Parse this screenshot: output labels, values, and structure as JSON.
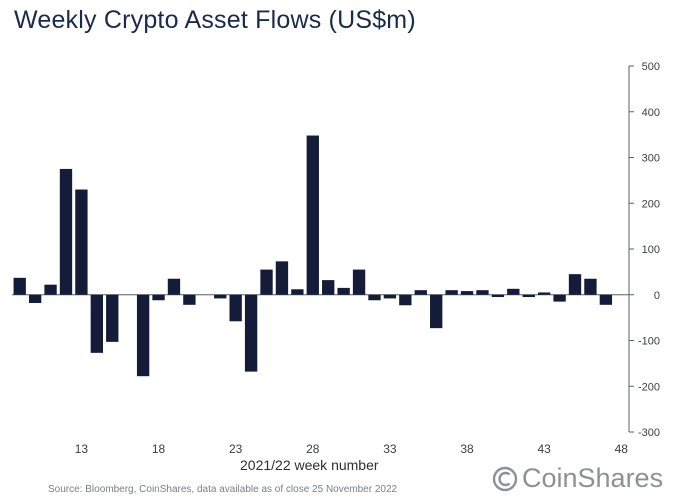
{
  "chart_data": {
    "type": "bar",
    "title": "Weekly Crypto Asset Flows (US$m)",
    "xlabel": "2021/22 week number",
    "ylabel": "",
    "ylim": [
      -300,
      500
    ],
    "yticks": [
      500,
      400,
      300,
      200,
      100,
      0,
      -100,
      -200,
      -300
    ],
    "xticks": [
      13,
      18,
      23,
      28,
      33,
      38,
      43,
      48
    ],
    "grid": false,
    "bar_color": "#141c3a",
    "categories": [
      9,
      10,
      11,
      12,
      13,
      14,
      15,
      16,
      17,
      18,
      19,
      20,
      21,
      22,
      23,
      24,
      25,
      26,
      27,
      28,
      29,
      30,
      31,
      32,
      33,
      34,
      35,
      36,
      37,
      38,
      39,
      40,
      41,
      42,
      43,
      44,
      45,
      46,
      47,
      48
    ],
    "values": [
      37,
      -18,
      22,
      275,
      230,
      -127,
      -103,
      0,
      -178,
      -12,
      35,
      -22,
      0,
      -8,
      -58,
      -168,
      55,
      73,
      12,
      348,
      32,
      15,
      55,
      -12,
      -8,
      -23,
      10,
      -73,
      10,
      8,
      10,
      -5,
      13,
      -5,
      5,
      -15,
      45,
      35,
      -22,
      0
    ]
  },
  "source_note": "Source: Bloomberg, CoinShares, data available as of close 25 November 2022",
  "brand": {
    "name": "CoinShares",
    "color": "#8d9197"
  }
}
